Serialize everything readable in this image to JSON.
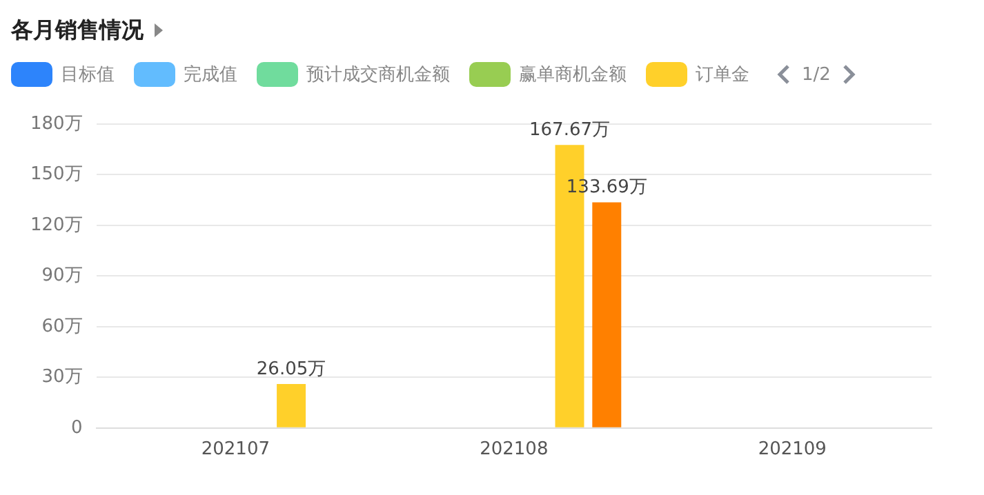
{
  "chart_data": {
    "type": "bar",
    "title": "各月销售情况",
    "categories": [
      "202107",
      "202108",
      "202109"
    ],
    "series": [
      {
        "name": "目标值",
        "color": "#2d84fb",
        "values": [
          null,
          null,
          null
        ]
      },
      {
        "name": "完成值",
        "color": "#62bcfe",
        "values": [
          null,
          null,
          null
        ]
      },
      {
        "name": "预计成交商机金额",
        "color": "#70dc9d",
        "values": [
          null,
          null,
          null
        ]
      },
      {
        "name": "赢单商机金额",
        "color": "#98cd52",
        "values": [
          null,
          null,
          null
        ]
      },
      {
        "name": "订单金",
        "color": "#ffd02a",
        "values": [
          26.05,
          167.67,
          null
        ],
        "value_labels": [
          "26.05万",
          "167.67万",
          null
        ]
      },
      {
        "color": "#ff8000",
        "values": [
          null,
          133.69,
          null
        ],
        "value_labels": [
          null,
          "133.69万",
          null
        ]
      }
    ],
    "ylim": [
      0,
      180
    ],
    "yticks": [
      {
        "value": 0,
        "label": "0"
      },
      {
        "value": 30,
        "label": "30万"
      },
      {
        "value": 60,
        "label": "60万"
      },
      {
        "value": 90,
        "label": "90万"
      },
      {
        "value": 120,
        "label": "120万"
      },
      {
        "value": 150,
        "label": "150万"
      },
      {
        "value": 180,
        "label": "180万"
      }
    ],
    "grid": "y",
    "legend": "top left",
    "annotations": [
      "1/2"
    ]
  }
}
